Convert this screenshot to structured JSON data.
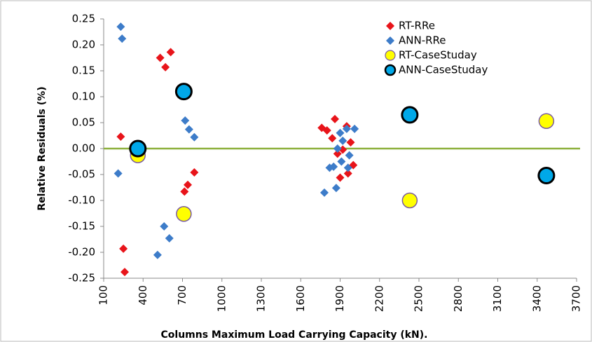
{
  "chart_data": {
    "type": "scatter",
    "xlabel": "Columns Maximum Load Carrying Capacity (kN).",
    "ylabel": "Relative Residuals (%)",
    "xlim": [
      100,
      3700
    ],
    "xticks": [
      100,
      400,
      700,
      1000,
      1300,
      1600,
      1900,
      2200,
      2500,
      2800,
      3100,
      3400,
      3700
    ],
    "ylim": [
      -0.25,
      0.25
    ],
    "yticks": [
      -0.25,
      {
        "value": -0.2,
        "label": "-0.20"
      },
      -0.15,
      {
        "value": -0.1,
        "label": "-0.10"
      },
      -0.05,
      {
        "value": 0,
        "label": "0.00"
      },
      0.05,
      {
        "value": 0.1,
        "label": "0.10"
      },
      0.15,
      {
        "value": 0.2,
        "label": "0.20"
      },
      0.25
    ],
    "series": [
      {
        "name": "RT-RRe",
        "color": "#e8141a",
        "marker": "diamond",
        "x": [
          230,
          250,
          260,
          530,
          570,
          610,
          715,
          740,
          790,
          1760,
          1800,
          1840,
          1860,
          1880,
          1900,
          1920,
          1950,
          1960,
          1980,
          2000
        ],
        "values": [
          0.023,
          -0.193,
          -0.238,
          0.175,
          0.157,
          0.186,
          -0.083,
          -0.07,
          -0.046,
          0.04,
          0.035,
          0.02,
          0.057,
          -0.01,
          -0.056,
          -0.002,
          0.043,
          -0.048,
          0.012,
          -0.032
        ]
      },
      {
        "name": "ANN-RRe",
        "color": "#3d7cc9",
        "marker": "diamond",
        "x": [
          230,
          240,
          210,
          510,
          560,
          600,
          720,
          750,
          790,
          1780,
          1820,
          1850,
          1870,
          1880,
          1900,
          1910,
          1920,
          1950,
          1960,
          1970,
          2010
        ],
        "values": [
          0.235,
          0.212,
          -0.048,
          -0.205,
          -0.15,
          -0.173,
          0.054,
          0.037,
          0.022,
          -0.085,
          -0.037,
          -0.035,
          -0.076,
          0.0,
          0.03,
          -0.025,
          0.015,
          0.038,
          -0.037,
          -0.013,
          0.038
        ]
      },
      {
        "name": "RT-CaseStuday",
        "color": "#ffff00",
        "marker": "circle",
        "x": [
          360,
          710,
          2430,
          3470
        ],
        "values": [
          -0.013,
          -0.126,
          -0.1,
          0.053
        ]
      },
      {
        "name": "ANN-CaseStuday",
        "color": "#00a8e8",
        "marker": "circle",
        "x": [
          360,
          710,
          2430,
          3470
        ],
        "values": [
          0.0,
          0.11,
          0.065,
          -0.052
        ]
      }
    ]
  }
}
